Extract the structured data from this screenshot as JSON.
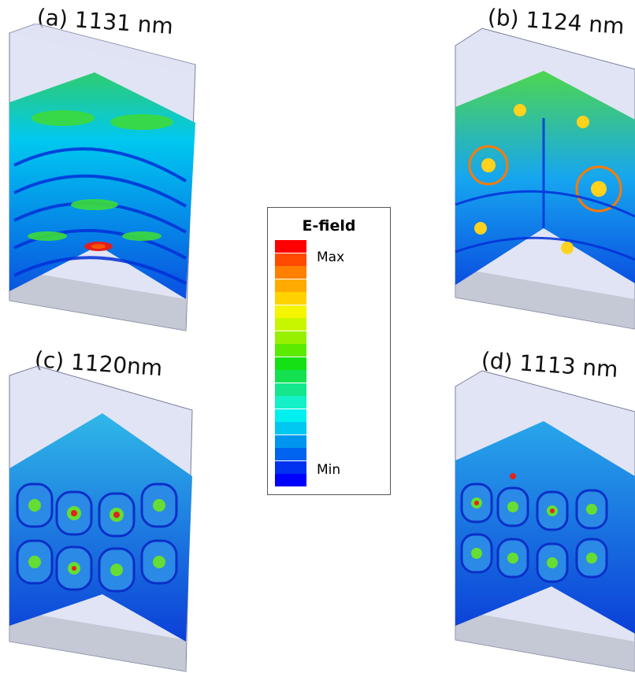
{
  "panels": [
    {
      "id": "a",
      "label": "(a) 1131 nm"
    },
    {
      "id": "b",
      "label": "(b) 1124 nm"
    },
    {
      "id": "c",
      "label": "(c) 1120nm"
    },
    {
      "id": "d",
      "label": "(d) 1113 nm"
    }
  ],
  "legend": {
    "title": "E-field",
    "max_label": "Max",
    "min_label": "Min",
    "colors": [
      "#ff0000",
      "#ff4a00",
      "#ff7f00",
      "#ffaa00",
      "#ffd200",
      "#f5f500",
      "#c8f500",
      "#96f000",
      "#5aeb00",
      "#14e114",
      "#14e150",
      "#14e68c",
      "#14f0c8",
      "#00f0f0",
      "#00c8f0",
      "#0096f0",
      "#0064f0",
      "#0032f0",
      "#0000ff"
    ]
  }
}
